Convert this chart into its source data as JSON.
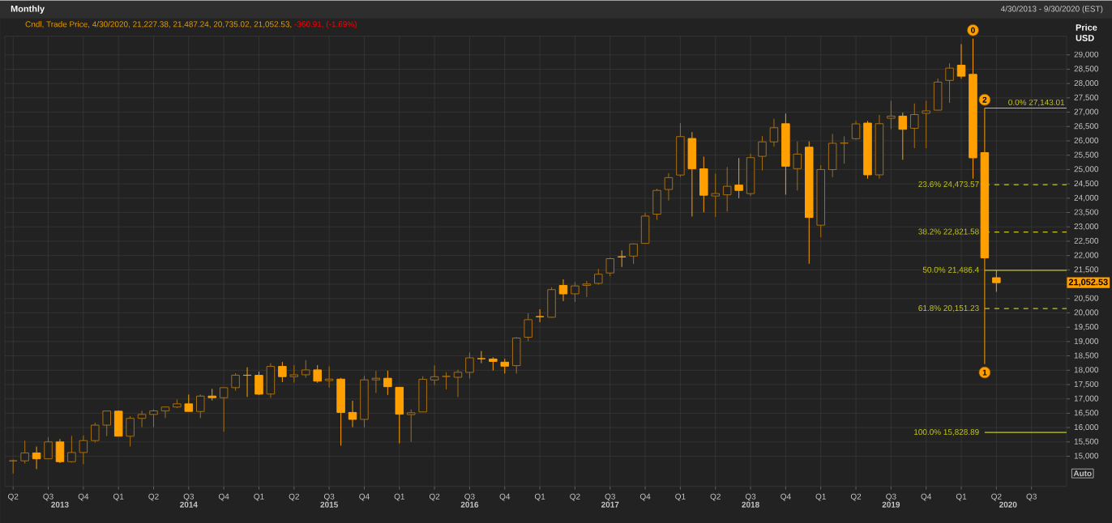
{
  "chart_data": {
    "type": "candlestick",
    "title": "Monthly",
    "subtitle": "4/30/2013 - 9/30/2020 (EST)",
    "ylabel": "Price USD",
    "grid": true,
    "x": [
      "2013-04",
      "2013-05",
      "2013-06",
      "2013-07",
      "2013-08",
      "2013-09",
      "2013-10",
      "2013-11",
      "2013-12",
      "2014-01",
      "2014-02",
      "2014-03",
      "2014-04",
      "2014-05",
      "2014-06",
      "2014-07",
      "2014-08",
      "2014-09",
      "2014-10",
      "2014-11",
      "2014-12",
      "2015-01",
      "2015-02",
      "2015-03",
      "2015-04",
      "2015-05",
      "2015-06",
      "2015-07",
      "2015-08",
      "2015-09",
      "2015-10",
      "2015-11",
      "2015-12",
      "2016-01",
      "2016-02",
      "2016-03",
      "2016-04",
      "2016-05",
      "2016-06",
      "2016-07",
      "2016-08",
      "2016-09",
      "2016-10",
      "2016-11",
      "2016-12",
      "2017-01",
      "2017-02",
      "2017-03",
      "2017-04",
      "2017-05",
      "2017-06",
      "2017-07",
      "2017-08",
      "2017-09",
      "2017-10",
      "2017-11",
      "2017-12",
      "2018-01",
      "2018-02",
      "2018-03",
      "2018-04",
      "2018-05",
      "2018-06",
      "2018-07",
      "2018-08",
      "2018-09",
      "2018-10",
      "2018-11",
      "2018-12",
      "2019-01",
      "2019-02",
      "2019-03",
      "2019-04",
      "2019-05",
      "2019-06",
      "2019-07",
      "2019-08",
      "2019-09",
      "2019-10",
      "2019-11",
      "2019-12",
      "2020-01",
      "2020-02",
      "2020-03",
      "2020-04"
    ],
    "ohlc": [
      [
        14839,
        14888,
        14398,
        14840
      ],
      [
        14840,
        15542,
        14746,
        15116
      ],
      [
        15116,
        15340,
        14551,
        14910
      ],
      [
        14910,
        15658,
        14910,
        15500
      ],
      [
        15500,
        15598,
        14760,
        14810
      ],
      [
        14810,
        15710,
        14777,
        15130
      ],
      [
        15130,
        15721,
        14720,
        15546
      ],
      [
        15546,
        16174,
        15480,
        16086
      ],
      [
        16086,
        16588,
        15703,
        16577
      ],
      [
        16572,
        16589,
        15699,
        15699
      ],
      [
        15698,
        16399,
        15340,
        16322
      ],
      [
        16321,
        16588,
        16015,
        16458
      ],
      [
        16458,
        16632,
        16015,
        16581
      ],
      [
        16580,
        16736,
        16333,
        16717
      ],
      [
        16716,
        16978,
        16675,
        16827
      ],
      [
        16827,
        17151,
        16563,
        16563
      ],
      [
        16561,
        17153,
        16333,
        17098
      ],
      [
        17099,
        17350,
        16945,
        17043
      ],
      [
        17041,
        17395,
        15855,
        17391
      ],
      [
        17391,
        17895,
        17284,
        17828
      ],
      [
        17828,
        18103,
        17068,
        17823
      ],
      [
        17823,
        17951,
        17136,
        17165
      ],
      [
        17169,
        18244,
        17038,
        18133
      ],
      [
        18134,
        18289,
        17586,
        17776
      ],
      [
        17776,
        18175,
        17568,
        17841
      ],
      [
        17841,
        18351,
        17740,
        18011
      ],
      [
        18011,
        18176,
        17562,
        17620
      ],
      [
        17639,
        18137,
        17399,
        17690
      ],
      [
        17690,
        17733,
        15370,
        16528
      ],
      [
        16528,
        16934,
        16013,
        16285
      ],
      [
        16285,
        17799,
        16013,
        17664
      ],
      [
        17664,
        17978,
        17210,
        17720
      ],
      [
        17720,
        17985,
        17139,
        17425
      ],
      [
        17405,
        17405,
        15451,
        16466
      ],
      [
        16453,
        16629,
        15503,
        16517
      ],
      [
        16546,
        17790,
        16546,
        17685
      ],
      [
        17661,
        18168,
        17484,
        17774
      ],
      [
        17783,
        17935,
        17331,
        17787
      ],
      [
        17754,
        18017,
        17063,
        17930
      ],
      [
        17925,
        18622,
        17713,
        18432
      ],
      [
        18405,
        18668,
        18247,
        18401
      ],
      [
        18392,
        18450,
        17992,
        18308
      ],
      [
        18282,
        18400,
        17888,
        18142
      ],
      [
        18161,
        19153,
        17884,
        19124
      ],
      [
        19150,
        19987,
        19013,
        19763
      ],
      [
        19873,
        20126,
        19678,
        19864
      ],
      [
        19848,
        20892,
        19832,
        20812
      ],
      [
        20957,
        21170,
        20412,
        20663
      ],
      [
        20665,
        21071,
        20379,
        20941
      ],
      [
        20962,
        21113,
        20554,
        21009
      ],
      [
        21030,
        21535,
        20989,
        21350
      ],
      [
        21392,
        21929,
        21279,
        21891
      ],
      [
        21961,
        22179,
        21600,
        21948
      ],
      [
        21982,
        22420,
        21709,
        22405
      ],
      [
        22423,
        23485,
        22416,
        23377
      ],
      [
        23442,
        24328,
        23242,
        24272
      ],
      [
        24305,
        24876,
        23921,
        24719
      ],
      [
        24809,
        26617,
        24741,
        26149
      ],
      [
        26083,
        26307,
        23360,
        25029
      ],
      [
        25025,
        25450,
        23509,
        24103
      ],
      [
        24076,
        24858,
        23345,
        24163
      ],
      [
        24118,
        25086,
        23532,
        24416
      ],
      [
        24458,
        25403,
        23998,
        24271
      ],
      [
        24161,
        25552,
        24077,
        25415
      ],
      [
        25461,
        26168,
        24965,
        25965
      ],
      [
        25965,
        26770,
        25798,
        26458
      ],
      [
        26598,
        26951,
        24123,
        25116
      ],
      [
        25031,
        25980,
        24268,
        25538
      ],
      [
        25780,
        25980,
        21713,
        23327
      ],
      [
        23058,
        25150,
        22639,
        24999
      ],
      [
        24998,
        26241,
        24735,
        25916
      ],
      [
        25917,
        26155,
        25208,
        25929
      ],
      [
        26076,
        26696,
        26039,
        26593
      ],
      [
        26620,
        26696,
        24680,
        24815
      ],
      [
        24815,
        26907,
        24680,
        26600
      ],
      [
        26790,
        27399,
        26410,
        26864
      ],
      [
        26864,
        26986,
        25339,
        26403
      ],
      [
        26440,
        27306,
        25744,
        26917
      ],
      [
        26962,
        27399,
        25743,
        27046
      ],
      [
        27071,
        28175,
        27071,
        28051
      ],
      [
        28109,
        28701,
        27325,
        28538
      ],
      [
        28639,
        29374,
        28170,
        28256
      ],
      [
        28320,
        29568,
        24681,
        25409
      ],
      [
        25591,
        27143,
        18214,
        21917
      ],
      [
        21227.38,
        21487.24,
        20735.02,
        21052.53
      ]
    ],
    "colors": [
      "#a86e10",
      "#a86e10",
      "#ffa000",
      "#a86e10",
      "#ffa000",
      "#a86e10",
      "#a86e10",
      "#a86e10",
      "#a86e10",
      "#ffa000",
      "#a86e10",
      "#a86e10",
      "#a86e10",
      "#a86e10",
      "#a86e10",
      "#ffa000",
      "#a86e10",
      "#ffa000",
      "#a86e10",
      "#a86e10",
      "#ffa000",
      "#ffa000",
      "#a86e10",
      "#ffa000",
      "#a86e10",
      "#a86e10",
      "#ffa000",
      "#a86e10",
      "#ffa000",
      "#ffa000",
      "#a86e10",
      "#a86e10",
      "#ffa000",
      "#ffa000",
      "#a86e10",
      "#a86e10",
      "#a86e10",
      "#a86e10",
      "#a86e10",
      "#a86e10",
      "#ffa000",
      "#ffa000",
      "#ffa000",
      "#a86e10",
      "#a86e10",
      "#ffa000",
      "#a86e10",
      "#ffa000",
      "#a86e10",
      "#a86e10",
      "#a86e10",
      "#a86e10",
      "#ffa000",
      "#a86e10",
      "#a86e10",
      "#a86e10",
      "#a86e10",
      "#a86e10",
      "#ffa000",
      "#ffa000",
      "#a86e10",
      "#a86e10",
      "#ffa000",
      "#a86e10",
      "#a86e10",
      "#a86e10",
      "#ffa000",
      "#a86e10",
      "#ffa000",
      "#a86e10",
      "#a86e10",
      "#a86e10",
      "#a86e10",
      "#ffa000",
      "#a86e10",
      "#a86e10",
      "#ffa000",
      "#a86e10",
      "#a86e10",
      "#a86e10",
      "#a86e10",
      "#ffa000",
      "#ffa000",
      "#ffa000",
      "#ffa000"
    ],
    "xlim": [
      "2013-03-10",
      "2020-10"
    ],
    "xticks": [
      {
        "value": "2013-04",
        "label": "Q2"
      },
      {
        "value": "2013-07",
        "label": "Q3"
      },
      {
        "value": "2013-10",
        "label": "Q4"
      },
      {
        "value": "2014-01",
        "label": "Q1"
      },
      {
        "value": "2014-04",
        "label": "Q2"
      },
      {
        "value": "2014-07",
        "label": "Q3"
      },
      {
        "value": "2014-10",
        "label": "Q4"
      },
      {
        "value": "2015-01",
        "label": "Q1"
      },
      {
        "value": "2015-04",
        "label": "Q2"
      },
      {
        "value": "2015-07",
        "label": "Q3"
      },
      {
        "value": "2015-10",
        "label": "Q4"
      },
      {
        "value": "2016-01",
        "label": "Q1"
      },
      {
        "value": "2016-04",
        "label": "Q2"
      },
      {
        "value": "2016-07",
        "label": "Q3"
      },
      {
        "value": "2016-10",
        "label": "Q4"
      },
      {
        "value": "2017-01",
        "label": "Q1"
      },
      {
        "value": "2017-04",
        "label": "Q2"
      },
      {
        "value": "2017-07",
        "label": "Q3"
      },
      {
        "value": "2017-10",
        "label": "Q4"
      },
      {
        "value": "2018-01",
        "label": "Q1"
      },
      {
        "value": "2018-04",
        "label": "Q2"
      },
      {
        "value": "2018-07",
        "label": "Q3"
      },
      {
        "value": "2018-10",
        "label": "Q4"
      },
      {
        "value": "2019-01",
        "label": "Q1"
      },
      {
        "value": "2019-04",
        "label": "Q2"
      },
      {
        "value": "2019-07",
        "label": "Q3"
      },
      {
        "value": "2019-10",
        "label": "Q4"
      },
      {
        "value": "2020-01",
        "label": "Q1"
      },
      {
        "value": "2020-04",
        "label": "Q2"
      },
      {
        "value": "2020-07",
        "label": "Q3"
      }
    ],
    "x2lim": [
      "2013-03-10",
      "2020-10"
    ],
    "x2ticks": [
      {
        "value": "2013-08",
        "label": "2013"
      },
      {
        "value": "2014-07",
        "label": "2014"
      },
      {
        "value": "2015-07",
        "label": "2015"
      },
      {
        "value": "2016-07",
        "label": "2016"
      },
      {
        "value": "2017-07",
        "label": "2017"
      },
      {
        "value": "2018-07",
        "label": "2018"
      },
      {
        "value": "2019-07",
        "label": "2019"
      },
      {
        "value": "2020-05",
        "label": "2020"
      }
    ],
    "ylim": [
      13950,
      29650
    ],
    "yticks": [
      {
        "value": 15000,
        "label": "15,000"
      },
      {
        "value": 15500,
        "label": "15,500"
      },
      {
        "value": 16000,
        "label": "16,000"
      },
      {
        "value": 16500,
        "label": "16,500"
      },
      {
        "value": 17000,
        "label": "17,000"
      },
      {
        "value": 17500,
        "label": "17,500"
      },
      {
        "value": 18000,
        "label": "18,000"
      },
      {
        "value": 18500,
        "label": "18,500"
      },
      {
        "value": 19000,
        "label": "19,000"
      },
      {
        "value": 19500,
        "label": "19,500"
      },
      {
        "value": 20000,
        "label": "20,000"
      },
      {
        "value": 20500,
        "label": "20,500"
      },
      {
        "value": 21000,
        "label": null
      },
      {
        "value": 21500,
        "label": "21,500"
      },
      {
        "value": 22000,
        "label": "22,000"
      },
      {
        "value": 22500,
        "label": "22,500"
      },
      {
        "value": 23000,
        "label": "23,000"
      },
      {
        "value": 23500,
        "label": "23,500"
      },
      {
        "value": 24000,
        "label": "24,000"
      },
      {
        "value": 24500,
        "label": "24,500"
      },
      {
        "value": 25000,
        "label": "25,000"
      },
      {
        "value": 25500,
        "label": "25,500"
      },
      {
        "value": 26000,
        "label": "26,000"
      },
      {
        "value": 26500,
        "label": "26,500"
      },
      {
        "value": 27000,
        "label": "27,000"
      },
      {
        "value": 27500,
        "label": "27,500"
      },
      {
        "value": 28000,
        "label": "28,000"
      },
      {
        "value": 28500,
        "label": "28,500"
      },
      {
        "value": 29000,
        "label": "29,000"
      }
    ],
    "ref_lines": [
      {
        "axis": "y",
        "value": 27143.01,
        "label": "0.0%  27,143.01",
        "color": "#c8c81e",
        "line_style": "solid"
      },
      {
        "axis": "y",
        "value": 24473.57,
        "label": "23.6%  24,473.57",
        "color": "#c8c81e",
        "line_style": "dashed"
      },
      {
        "axis": "y",
        "value": 22821.58,
        "label": "38.2%  22,821.58",
        "color": "#c8c81e",
        "line_style": "dashed"
      },
      {
        "axis": "y",
        "value": 21486.4,
        "label": "50.0%  21,486.4",
        "color": "#c8c81e",
        "line_style": "solid"
      },
      {
        "axis": "y",
        "value": 20151.23,
        "label": "61.8%  20,151.23",
        "color": "#c8c81e",
        "line_style": "dashed"
      },
      {
        "axis": "y",
        "value": 15828.89,
        "label": "100.0% 15,828.89",
        "color": "#c8c81e",
        "line_style": "solid"
      }
    ],
    "annotations": [
      "Cndl, Trade Price, 4/30/2020, 21,227.38, 21,487.24, 20,735.02, 21,052.53,",
      "-360.91, (-1.69%)",
      {
        "text": "0",
        "x": "2020-02",
        "y": 29568
      },
      {
        "text": "2",
        "x": "2020-03",
        "y": 27143
      },
      {
        "text": "1",
        "x": "2020-03",
        "y": 18214
      },
      "21,052.53",
      "Auto"
    ]
  }
}
